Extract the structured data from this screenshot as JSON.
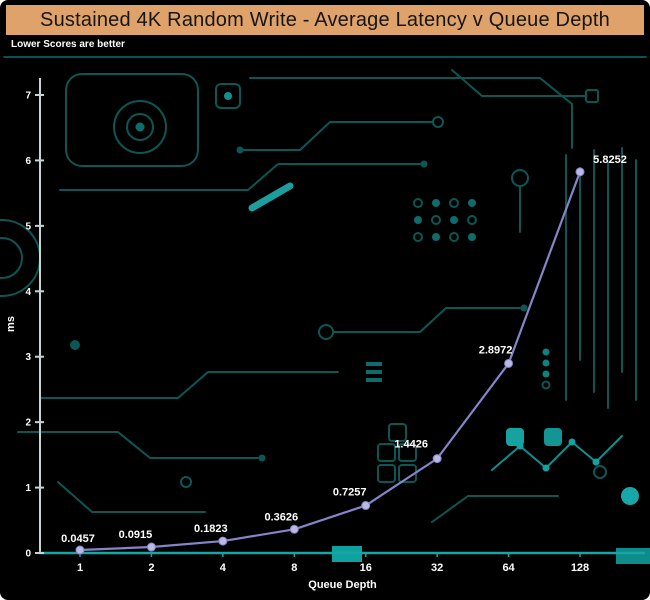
{
  "header": {
    "title": "Sustained 4K Random Write - Average Latency v Queue Depth",
    "subtitle": "Lower Scores are better"
  },
  "chart_data": {
    "type": "line",
    "title": "Sustained 4K Random Write - Average Latency v Queue Depth",
    "note": "Lower Scores are better",
    "categories": [
      "1",
      "2",
      "4",
      "8",
      "16",
      "32",
      "64",
      "128"
    ],
    "values": [
      0.0457,
      0.0915,
      0.1823,
      0.3626,
      0.7257,
      1.4426,
      2.8972,
      5.8252
    ],
    "data_labels": [
      "0.0457",
      "0.0915",
      "0.1823",
      "0.3626",
      "0.7257",
      "1.4426",
      "2.8972",
      "5.8252"
    ],
    "xlabel": "Queue Depth",
    "ylabel": "ms",
    "ylim": [
      0,
      7
    ],
    "yticks": [
      0,
      1,
      2,
      3,
      4,
      5,
      6,
      7
    ],
    "grid": false,
    "legend_position": "none"
  },
  "colors": {
    "header_bg": "#e0a26b",
    "header_text": "#151515",
    "background": "#000000",
    "circuit_trace": "#0c5656",
    "circuit_bright": "#18a6a6",
    "line": "#8585c7",
    "marker": "#b9b9e3",
    "axis": "#c2d6d6",
    "x_axis": "#18a5a5",
    "text": "#ffffff"
  }
}
